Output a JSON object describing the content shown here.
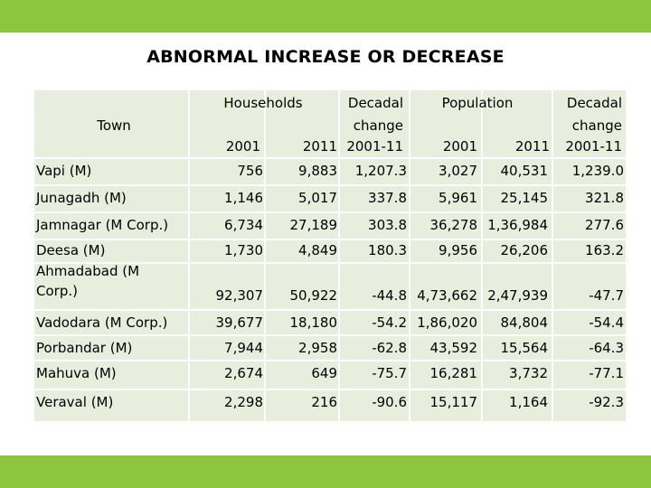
{
  "title": "ABNORMAL INCREASE OR DECREASE",
  "colors": {
    "accent_bar": "#8cc63f",
    "cell_bg": "#e8eedd"
  },
  "header": {
    "town": "Town",
    "households": "Households",
    "decadal_change_hh_1": "Decadal",
    "decadal_change_hh_2": "change",
    "decadal_change_hh_3": "2001-11",
    "population": "Population",
    "decadal_change_pop_1": "Decadal",
    "decadal_change_pop_2": "change",
    "decadal_change_pop_3": "2001-11",
    "hh_2001": "2001",
    "hh_2011": "2011",
    "pop_2001": "2001",
    "pop_2011": "2011"
  },
  "rows": [
    {
      "town": "Vapi (M)",
      "hh2001": "756",
      "hh2011": "9,883",
      "hhchg": "1,207.3",
      "pop2001": "3,027",
      "pop2011": "40,531",
      "popchg": "1,239.0"
    },
    {
      "town": "Junagadh (M)",
      "hh2001": "1,146",
      "hh2011": "5,017",
      "hhchg": "337.8",
      "pop2001": "5,961",
      "pop2011": "25,145",
      "popchg": "321.8"
    },
    {
      "town": "Jamnagar (M Corp.)",
      "hh2001": "6,734",
      "hh2011": "27,189",
      "hhchg": "303.8",
      "pop2001": "36,278",
      "pop2011": "1,36,984",
      "popchg": "277.6"
    },
    {
      "town": "Deesa (M)",
      "hh2001": "1,730",
      "hh2011": "4,849",
      "hhchg": "180.3",
      "pop2001": "9,956",
      "pop2011": "26,206",
      "popchg": "163.2"
    },
    {
      "town_1": "Ahmadabad (M",
      "town_2": "Corp.)",
      "hh2001": "92,307",
      "hh2011": "50,922",
      "hhchg": "-44.8",
      "pop2001": "4,73,662",
      "pop2011": "2,47,939",
      "popchg": "-47.7"
    },
    {
      "town": "Vadodara (M Corp.)",
      "hh2001": "39,677",
      "hh2011": "18,180",
      "hhchg": "-54.2",
      "pop2001": "1,86,020",
      "pop2011": "84,804",
      "popchg": "-54.4"
    },
    {
      "town": "Porbandar (M)",
      "hh2001": "7,944",
      "hh2011": "2,958",
      "hhchg": "-62.8",
      "pop2001": "43,592",
      "pop2011": "15,564",
      "popchg": "-64.3"
    },
    {
      "town": "Mahuva (M)",
      "hh2001": "2,674",
      "hh2011": "649",
      "hhchg": "-75.7",
      "pop2001": "16,281",
      "pop2011": "3,732",
      "popchg": "-77.1"
    },
    {
      "town": "Veraval (M)",
      "hh2001": "2,298",
      "hh2011": "216",
      "hhchg": "-90.6",
      "pop2001": "15,117",
      "pop2011": "1,164",
      "popchg": "-92.3"
    }
  ]
}
